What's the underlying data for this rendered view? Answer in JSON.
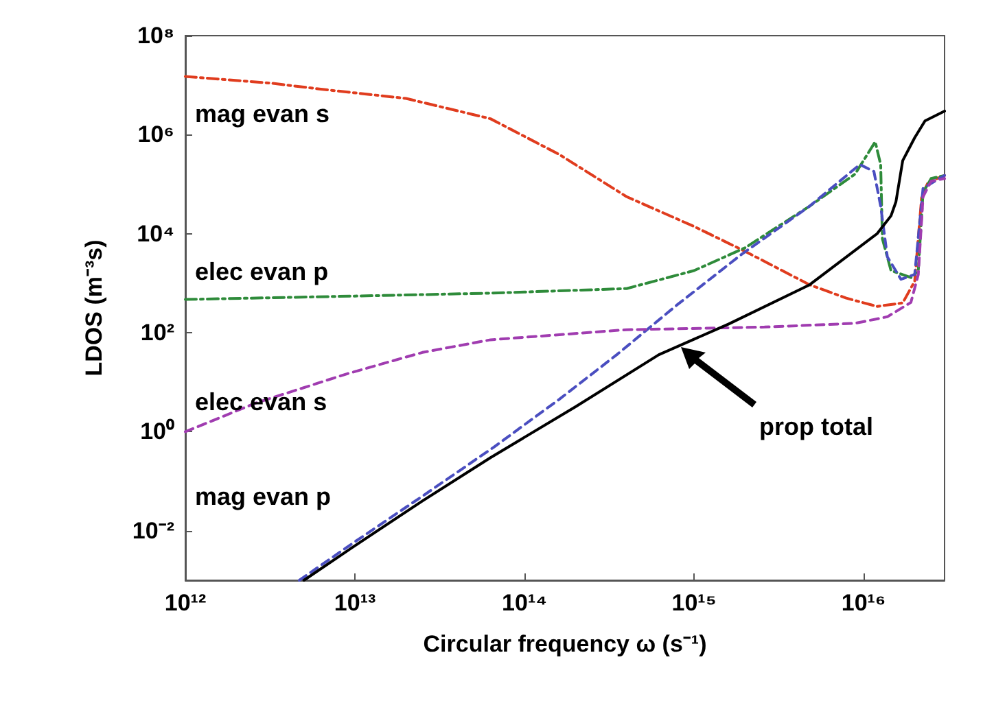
{
  "chart_data": {
    "type": "line",
    "xlabel": "Circular frequency ω (s⁻¹)",
    "ylabel": "LDOS (m⁻³s)",
    "log": "xy",
    "grid": false,
    "marker": "none",
    "xlim": [
      1000000000000.0,
      3e+16
    ],
    "ylim": [
      0.001,
      100000000.0
    ],
    "xticks": [
      {
        "value": 1000000000000.0,
        "label": "10¹²"
      },
      {
        "value": 10000000000000.0,
        "label": "10¹³"
      },
      {
        "value": 100000000000000.0,
        "label": "10¹⁴"
      },
      {
        "value": 1000000000000000.0,
        "label": "10¹⁵"
      },
      {
        "value": 1e+16,
        "label": "10¹⁶"
      }
    ],
    "yticks": [
      {
        "value": 0.01,
        "label": "10⁻²"
      },
      {
        "value": 1,
        "label": "10⁰"
      },
      {
        "value": 100.0,
        "label": "10²"
      },
      {
        "value": 10000.0,
        "label": "10⁴"
      },
      {
        "value": 1000000.0,
        "label": "10⁶"
      },
      {
        "value": 100000000.0,
        "label": "10⁸"
      }
    ],
    "series": [
      {
        "color": "#e03c1e",
        "line_style": "dashdot",
        "x": [
          1000000000000.0,
          3200000000000.0,
          6300000000000.0,
          20000000000000.0,
          63000000000000.0,
          160000000000000.0,
          400000000000000.0,
          1000000000000000.0,
          2000000000000000.0,
          4800000000000000.0,
          7900000000000000.0,
          1.2e+16,
          1.7e+16,
          2e+16,
          2.2e+16,
          2.4e+16,
          3e+16
        ],
        "values": [
          15000000.0,
          11000000.0,
          8300000.0,
          5400000.0,
          2100000.0,
          400000.0,
          56000.0,
          14000.0,
          4400.0,
          930,
          500,
          340,
          400,
          1100.0,
          56000.0,
          110000.0,
          150000.0
        ]
      },
      {
        "color": "#2e8b3a",
        "line_style": "dashdot",
        "x": [
          1000000000000.0,
          10000000000000.0,
          63000000000000.0,
          400000000000000.0,
          1000000000000000.0,
          2000000000000000.0,
          4800000000000000.0,
          8900000000000000.0,
          1.17e+16,
          1.26e+16,
          1.29e+16,
          1.45e+16,
          1.9e+16,
          2.1e+16,
          2.24e+16,
          2.5e+16,
          3e+16
        ],
        "values": [
          470,
          550,
          630,
          780,
          1800.0,
          5200.0,
          36000.0,
          160000.0,
          720000.0,
          250000.0,
          7900.0,
          1800.0,
          1300.0,
          1800.0,
          68000.0,
          130000.0,
          150000.0
        ]
      },
      {
        "color": "#4a4ec0",
        "line_style": "dashed",
        "x": [
          4700000000000.0,
          10000000000000.0,
          25000000000000.0,
          66000000000000.0,
          160000000000000.0,
          350000000000000.0,
          790000000000000.0,
          1900000000000000.0,
          4800000000000000.0,
          9500000000000000.0,
          1.15e+16,
          1.26e+16,
          1.38e+16,
          1.66e+16,
          2e+16,
          2.24e+16,
          3e+16
        ],
        "values": [
          0.001,
          0.006,
          0.05,
          0.49,
          4.5,
          36,
          360,
          3800.0,
          36000.0,
          250000.0,
          180000.0,
          36000.0,
          3400.0,
          1200.0,
          1500.0,
          83000.0,
          150000.0
        ]
      },
      {
        "color": "#a03cb0",
        "line_style": "dashed",
        "x": [
          1000000000000.0,
          2600000000000.0,
          9100000000000.0,
          25000000000000.0,
          63000000000000.0,
          400000000000000.0,
          2600000000000000.0,
          8900000000000000.0,
          1.38e+16,
          1.9e+16,
          2.1e+16,
          2.24e+16,
          2.5e+16,
          3e+16
        ],
        "values": [
          1,
          3.8,
          15,
          40,
          72,
          115,
          130,
          155,
          210,
          410,
          1500.0,
          56000.0,
          115000.0,
          130000.0
        ]
      },
      {
        "color": "#000000",
        "line_style": "solid",
        "x": [
          5000000000000.0,
          10000000000000.0,
          25000000000000.0,
          63000000000000.0,
          200000000000000.0,
          620000000000000.0,
          1600000000000000.0,
          4800000000000000.0,
          1.2e+16,
          1.45e+16,
          1.55e+16,
          1.7e+16,
          2e+16,
          2.3e+16,
          3e+16
        ],
        "values": [
          0.001,
          0.005,
          0.04,
          0.3,
          3.2,
          36,
          150,
          930,
          10000.0,
          23000.0,
          44000.0,
          300000.0,
          870000.0,
          1900000.0,
          3000000.0
        ]
      }
    ],
    "annotations": [
      "mag evan s",
      "elec evan p",
      "elec evan s",
      "mag evan p",
      "prop total"
    ]
  }
}
